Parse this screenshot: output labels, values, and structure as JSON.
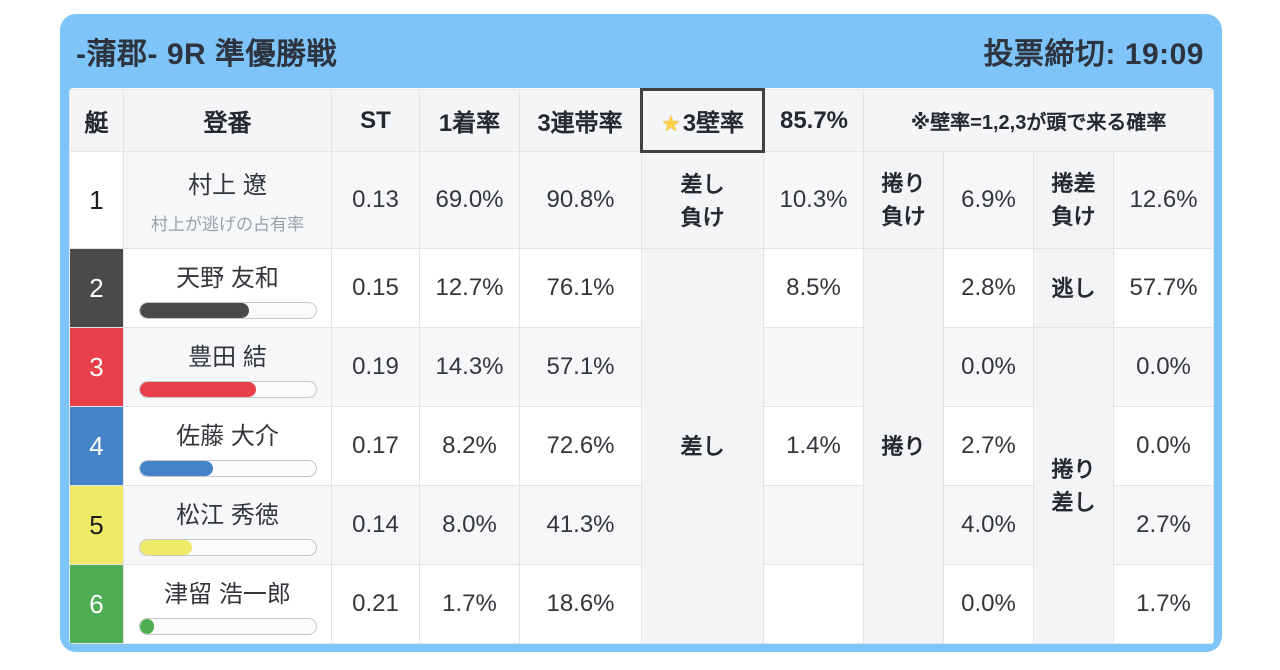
{
  "header": {
    "title": "-蒲郡- 9R 準優勝戦",
    "deadline": "投票締切: 19:09"
  },
  "columns": {
    "boat": "艇",
    "reg": "登番",
    "st": "ST",
    "win1": "1着率",
    "top3": "3連帯率"
  },
  "wall": {
    "star_icon": "★",
    "label": "3壁率",
    "value": "85.7%",
    "note": "※壁率=1,2,3が頭で来る確率"
  },
  "row1_labels": {
    "sashi": "差し\n負け",
    "makuri": "捲り\n負け",
    "makurizashi": "捲差\n負け"
  },
  "merged_labels": {
    "sashi": "差し",
    "makuri": "捲り",
    "nigashi": "逃し",
    "makurizashi": "捲り\n差し"
  },
  "rows": [
    {
      "boat": "1",
      "name": "村上 遼",
      "subtitle": "村上が逃げの占有率",
      "st": "0.13",
      "win1": "69.0%",
      "top3": "90.8%",
      "sashi": "10.3%",
      "makuri": "6.9%",
      "third": "12.6%"
    },
    {
      "boat": "2",
      "name": "天野 友和",
      "bar_pct": 62,
      "st": "0.15",
      "win1": "12.7%",
      "top3": "76.1%",
      "sashi": "8.5%",
      "makuri": "2.8%",
      "third": "57.7%"
    },
    {
      "boat": "3",
      "name": "豊田 結",
      "bar_pct": 66,
      "st": "0.19",
      "win1": "14.3%",
      "top3": "57.1%",
      "sashi": "",
      "makuri": "0.0%",
      "third": "0.0%"
    },
    {
      "boat": "4",
      "name": "佐藤 大介",
      "bar_pct": 42,
      "st": "0.17",
      "win1": "8.2%",
      "top3": "72.6%",
      "sashi": "1.4%",
      "makuri": "2.7%",
      "third": "0.0%"
    },
    {
      "boat": "5",
      "name": "松江 秀徳",
      "bar_pct": 30,
      "st": "0.14",
      "win1": "8.0%",
      "top3": "41.3%",
      "sashi": "",
      "makuri": "4.0%",
      "third": "2.7%"
    },
    {
      "boat": "6",
      "name": "津留 浩一郎",
      "bar_pct": 8,
      "st": "0.21",
      "win1": "1.7%",
      "top3": "18.6%",
      "sashi": "",
      "makuri": "0.0%",
      "third": "1.7%"
    }
  ],
  "colors": {
    "header_blue": "#7fc4f8",
    "highlight_orange": "#f0a232",
    "boat_1": "#ffffff",
    "boat_2": "#4a4a4a",
    "boat_3": "#e8404a",
    "boat_4": "#4583c9",
    "boat_5": "#eeea68",
    "boat_6": "#4fae53"
  }
}
